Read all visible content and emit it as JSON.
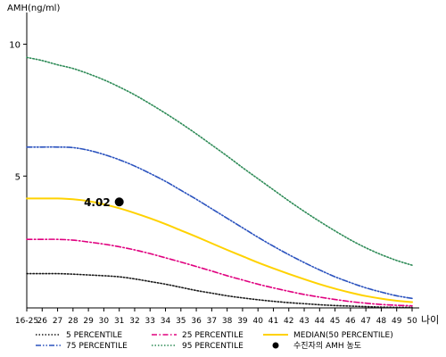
{
  "chart_data": {
    "type": "line",
    "ylabel": "AMH(ng/ml)",
    "xlabel": "나이",
    "ylim": [
      0,
      11
    ],
    "yticks": [
      5,
      10
    ],
    "x": [
      "16-25",
      "26",
      "27",
      "28",
      "29",
      "30",
      "31",
      "32",
      "33",
      "34",
      "35",
      "36",
      "37",
      "38",
      "39",
      "40",
      "41",
      "42",
      "43",
      "44",
      "45",
      "46",
      "47",
      "48",
      "49",
      "50"
    ],
    "series": [
      {
        "name": "5 PERCENTILE",
        "color": "#1a1a1a",
        "style": "dotted",
        "values": [
          1.3,
          1.3,
          1.3,
          1.28,
          1.25,
          1.22,
          1.18,
          1.1,
          1.0,
          0.9,
          0.78,
          0.66,
          0.56,
          0.46,
          0.38,
          0.31,
          0.25,
          0.2,
          0.16,
          0.12,
          0.09,
          0.07,
          0.05,
          0.03,
          0.02,
          0.02
        ]
      },
      {
        "name": "25 PERCENTILE",
        "color": "#e0007f",
        "style": "dashdot",
        "values": [
          2.6,
          2.6,
          2.6,
          2.57,
          2.5,
          2.42,
          2.32,
          2.2,
          2.06,
          1.9,
          1.74,
          1.57,
          1.4,
          1.22,
          1.06,
          0.9,
          0.76,
          0.63,
          0.51,
          0.41,
          0.32,
          0.24,
          0.18,
          0.13,
          0.1,
          0.08
        ]
      },
      {
        "name": "MEDIAN(50 PERCENTILE)",
        "color": "#ffd200",
        "style": "solid",
        "values": [
          4.15,
          4.15,
          4.15,
          4.12,
          4.05,
          3.93,
          3.78,
          3.6,
          3.4,
          3.18,
          2.94,
          2.7,
          2.45,
          2.2,
          1.96,
          1.72,
          1.5,
          1.29,
          1.09,
          0.9,
          0.73,
          0.58,
          0.45,
          0.35,
          0.27,
          0.22
        ]
      },
      {
        "name": "75 PERCENTILE",
        "color": "#2a52be",
        "style": "dashdotdot",
        "values": [
          6.1,
          6.1,
          6.1,
          6.08,
          5.98,
          5.82,
          5.62,
          5.38,
          5.1,
          4.8,
          4.46,
          4.12,
          3.76,
          3.4,
          3.04,
          2.68,
          2.34,
          2.02,
          1.72,
          1.44,
          1.18,
          0.96,
          0.76,
          0.6,
          0.46,
          0.36
        ]
      },
      {
        "name": "95 PERCENTILE",
        "color": "#2e8b57",
        "style": "dotted",
        "values": [
          9.5,
          9.38,
          9.22,
          9.08,
          8.88,
          8.65,
          8.38,
          8.08,
          7.74,
          7.38,
          7.0,
          6.6,
          6.18,
          5.76,
          5.32,
          4.9,
          4.48,
          4.06,
          3.66,
          3.28,
          2.92,
          2.58,
          2.28,
          2.02,
          1.8,
          1.62
        ]
      }
    ],
    "point": {
      "name": "수진자의 AMH 농도",
      "x": "31",
      "y": 4.02,
      "label": "4.02",
      "color": "#000000"
    },
    "legend": {
      "placement": "bottom",
      "order": [
        "5 PERCENTILE",
        "25 PERCENTILE",
        "MEDIAN(50 PERCENTILE)",
        "75 PERCENTILE",
        "95 PERCENTILE",
        "수진자의 AMH 농도"
      ]
    }
  }
}
